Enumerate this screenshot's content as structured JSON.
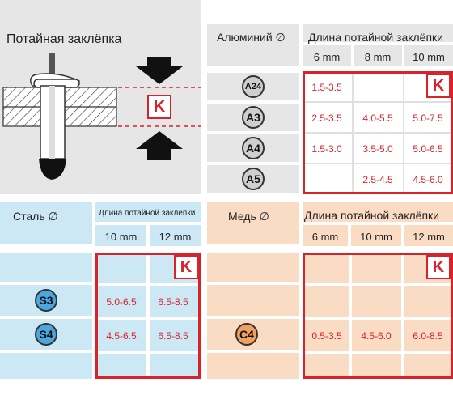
{
  "colors": {
    "red": "#d8232a",
    "gray": "#e6e6e6",
    "blue": "#cde8f5",
    "orange": "#fadcc4"
  },
  "diagram": {
    "title": "Потайная заклёпка",
    "k_label": "K"
  },
  "aluminum": {
    "material": "Алюминий ∅",
    "header": "Длина потайной заклёпки",
    "lengths": [
      "6 mm",
      "8 mm",
      "10 mm"
    ],
    "k_label": "K",
    "rows": [
      {
        "code": "A24",
        "values": [
          "1.5-3.5",
          "",
          ""
        ]
      },
      {
        "code": "A3",
        "values": [
          "2.5-3.5",
          "4.0-5.5",
          "5.0-7.5"
        ]
      },
      {
        "code": "A4",
        "values": [
          "1.5-3.0",
          "3.5-5.0",
          "5.0-6.5"
        ]
      },
      {
        "code": "A5",
        "values": [
          "",
          "2.5-4.5",
          "4.5-6.0"
        ]
      }
    ]
  },
  "steel": {
    "material": "Сталь ∅",
    "header": "Длина потайной заклёпки",
    "lengths": [
      "10 mm",
      "12 mm"
    ],
    "k_label": "K",
    "rows": [
      {
        "code": "",
        "values": [
          "",
          ""
        ]
      },
      {
        "code": "S3",
        "values": [
          "5.0-6.5",
          "6.5-8.5"
        ]
      },
      {
        "code": "S4",
        "values": [
          "4.5-6.5",
          "6.5-8.5"
        ]
      },
      {
        "code": "",
        "values": [
          "",
          ""
        ]
      }
    ]
  },
  "copper": {
    "material": "Медь ∅",
    "header": "Длина потайной заклёпки",
    "lengths": [
      "6 mm",
      "10 mm",
      "12 mm"
    ],
    "k_label": "K",
    "rows": [
      {
        "code": "",
        "values": [
          "",
          "",
          ""
        ]
      },
      {
        "code": "",
        "values": [
          "",
          "",
          ""
        ]
      },
      {
        "code": "C4",
        "values": [
          "0.5-3.5",
          "4.5-6.0",
          "6.0-8.5"
        ]
      },
      {
        "code": "",
        "values": [
          "",
          "",
          ""
        ]
      }
    ]
  }
}
